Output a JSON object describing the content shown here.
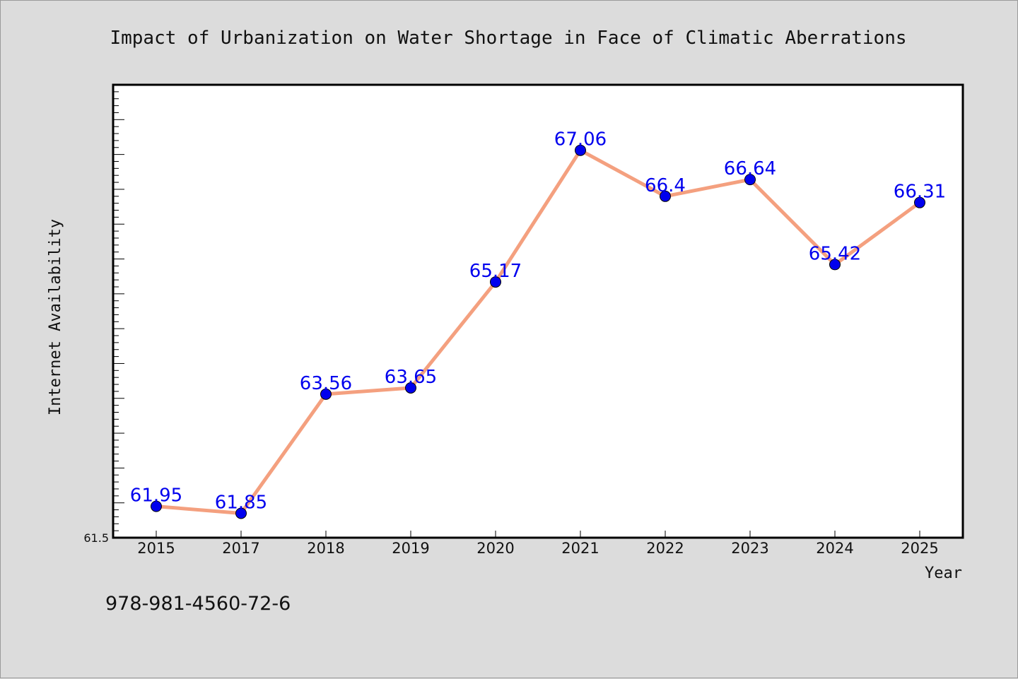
{
  "chart_data": {
    "type": "line",
    "title": "Impact of Urbanization on Water Shortage in Face of Climatic Aberrations",
    "xlabel": "Year",
    "ylabel": "Internet Availability",
    "categories": [
      "2015",
      "2017",
      "2018",
      "2019",
      "2020",
      "2021",
      "2022",
      "2023",
      "2024",
      "2025"
    ],
    "series": [
      {
        "values": [
          61.95,
          61.85,
          63.56,
          63.65,
          65.17,
          67.06,
          66.4,
          66.64,
          65.42,
          66.31
        ],
        "data_labels": [
          "61.95",
          "61.85",
          "63.56",
          "63.65",
          "65.17",
          "67.06",
          "66.4",
          "66.64",
          "65.42",
          "66.31"
        ]
      }
    ],
    "ylim": [
      61.5,
      68.0
    ],
    "y_tick_labels": [
      "61.5"
    ],
    "grid": false,
    "legend": "none",
    "colors": {
      "line": "#f4a07f",
      "marker": "#0000ee",
      "data_label": "#0000ee",
      "plot_background": "#ffffff",
      "page_background": "#dcdcdc"
    }
  },
  "footer_text": "978-981-4560-72-6"
}
